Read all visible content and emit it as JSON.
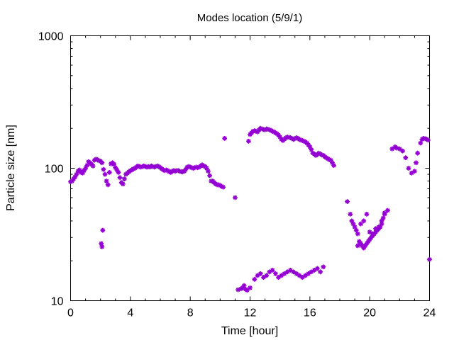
{
  "chart_data": {
    "type": "scatter",
    "title": "Modes location (5/9/1)",
    "xlabel": "Time [hour]",
    "ylabel": "Particle size [nm]",
    "xlim": [
      0,
      24
    ],
    "ylim": [
      10,
      1000
    ],
    "yscale": "log",
    "xticks": [
      0,
      4,
      8,
      12,
      16,
      20,
      24
    ],
    "xtick_labels": [
      "0",
      "4",
      "8",
      "12",
      "16",
      "20",
      "24"
    ],
    "yticks": [
      10,
      100,
      1000
    ],
    "ytick_labels": [
      "10",
      "100",
      "1000"
    ],
    "grid": false,
    "marker_color": "#9400d3",
    "marker": "asterisk",
    "series": [
      {
        "values": [
          [
            0.0,
            79
          ],
          [
            0.1,
            80
          ],
          [
            0.2,
            83
          ],
          [
            0.3,
            86
          ],
          [
            0.4,
            90
          ],
          [
            0.5,
            95
          ],
          [
            0.6,
            97
          ],
          [
            0.7,
            93
          ],
          [
            0.8,
            92
          ],
          [
            0.9,
            96
          ],
          [
            1.0,
            100
          ],
          [
            1.1,
            105
          ],
          [
            1.2,
            112
          ],
          [
            1.3,
            110
          ],
          [
            1.4,
            107
          ],
          [
            1.5,
            104
          ],
          [
            1.6,
            115
          ],
          [
            1.7,
            117
          ],
          [
            1.8,
            116
          ],
          [
            1.9,
            114
          ],
          [
            2.0,
            113
          ],
          [
            2.1,
            110
          ],
          [
            2.2,
            98
          ],
          [
            2.3,
            90
          ],
          [
            2.4,
            80
          ],
          [
            2.5,
            75
          ],
          [
            2.6,
            93
          ],
          [
            2.7,
            108
          ],
          [
            2.8,
            110
          ],
          [
            2.9,
            107
          ],
          [
            3.0,
            101
          ],
          [
            3.1,
            97
          ],
          [
            3.2,
            93
          ],
          [
            3.3,
            85
          ],
          [
            3.4,
            78
          ],
          [
            3.5,
            76
          ],
          [
            3.6,
            83
          ],
          [
            3.7,
            90
          ],
          [
            3.8,
            92
          ],
          [
            3.9,
            94
          ],
          [
            4.0,
            96
          ],
          [
            4.1,
            97
          ],
          [
            4.2,
            99
          ],
          [
            4.3,
            100
          ],
          [
            4.4,
            102
          ],
          [
            4.5,
            104
          ],
          [
            4.6,
            103
          ],
          [
            4.7,
            102
          ],
          [
            4.8,
            103
          ],
          [
            4.9,
            104
          ],
          [
            5.0,
            103
          ],
          [
            5.1,
            102
          ],
          [
            5.2,
            103
          ],
          [
            5.3,
            102
          ],
          [
            5.4,
            104
          ],
          [
            5.5,
            103
          ],
          [
            5.6,
            102
          ],
          [
            5.7,
            103
          ],
          [
            5.8,
            104
          ],
          [
            5.9,
            103
          ],
          [
            6.0,
            101
          ],
          [
            6.1,
            99
          ],
          [
            6.2,
            97
          ],
          [
            6.3,
            96
          ],
          [
            6.4,
            97
          ],
          [
            6.5,
            96
          ],
          [
            6.6,
            94
          ],
          [
            6.7,
            93
          ],
          [
            6.8,
            95
          ],
          [
            6.9,
            96
          ],
          [
            7.0,
            95
          ],
          [
            7.1,
            96
          ],
          [
            7.2,
            96
          ],
          [
            7.3,
            95
          ],
          [
            7.4,
            94
          ],
          [
            7.5,
            94
          ],
          [
            7.6,
            95
          ],
          [
            7.7,
            98
          ],
          [
            7.8,
            102
          ],
          [
            7.9,
            103
          ],
          [
            8.0,
            102
          ],
          [
            8.1,
            101
          ],
          [
            8.2,
            100
          ],
          [
            8.3,
            101
          ],
          [
            8.4,
            102
          ],
          [
            8.5,
            101
          ],
          [
            8.6,
            102
          ],
          [
            8.7,
            104
          ],
          [
            8.8,
            106
          ],
          [
            8.9,
            104
          ],
          [
            9.0,
            103
          ],
          [
            9.1,
            100
          ],
          [
            9.2,
            95
          ],
          [
            9.3,
            88
          ],
          [
            9.4,
            80
          ],
          [
            9.5,
            80
          ],
          [
            9.6,
            78
          ],
          [
            9.7,
            76
          ],
          [
            9.8,
            75
          ],
          [
            9.9,
            75
          ],
          [
            10.0,
            74
          ],
          [
            10.1,
            73
          ],
          [
            10.2,
            72
          ],
          [
            10.3,
            168
          ],
          [
            11.0,
            60
          ],
          [
            11.2,
            12.1
          ],
          [
            11.4,
            12.3
          ],
          [
            11.5,
            12.5
          ],
          [
            11.6,
            13.0
          ],
          [
            11.7,
            12.2
          ],
          [
            11.8,
            12.0
          ],
          [
            11.9,
            160
          ],
          [
            12.0,
            180
          ],
          [
            12.1,
            185
          ],
          [
            12.2,
            190
          ],
          [
            12.3,
            192
          ],
          [
            12.4,
            190
          ],
          [
            12.5,
            188
          ],
          [
            12.6,
            195
          ],
          [
            12.7,
            200
          ],
          [
            12.8,
            198
          ],
          [
            12.9,
            196
          ],
          [
            13.0,
            195
          ],
          [
            13.1,
            198
          ],
          [
            13.2,
            197
          ],
          [
            13.3,
            195
          ],
          [
            13.4,
            193
          ],
          [
            13.5,
            190
          ],
          [
            13.6,
            188
          ],
          [
            13.7,
            185
          ],
          [
            13.8,
            182
          ],
          [
            13.9,
            178
          ],
          [
            14.0,
            172
          ],
          [
            14.1,
            165
          ],
          [
            14.2,
            162
          ],
          [
            14.3,
            166
          ],
          [
            14.4,
            170
          ],
          [
            14.5,
            172
          ],
          [
            14.6,
            171
          ],
          [
            14.7,
            170
          ],
          [
            14.8,
            168
          ],
          [
            14.9,
            165
          ],
          [
            15.0,
            167
          ],
          [
            15.1,
            170
          ],
          [
            15.2,
            168
          ],
          [
            15.3,
            165
          ],
          [
            15.4,
            163
          ],
          [
            15.5,
            162
          ],
          [
            15.6,
            160
          ],
          [
            15.7,
            158
          ],
          [
            15.8,
            155
          ],
          [
            15.9,
            150
          ],
          [
            16.0,
            145
          ],
          [
            16.1,
            138
          ],
          [
            16.2,
            130
          ],
          [
            16.3,
            128
          ],
          [
            16.4,
            125
          ],
          [
            16.5,
            127
          ],
          [
            16.6,
            130
          ],
          [
            16.7,
            128
          ],
          [
            16.8,
            126
          ],
          [
            16.9,
            125
          ],
          [
            17.0,
            122
          ],
          [
            17.1,
            120
          ],
          [
            17.2,
            118
          ],
          [
            17.3,
            116
          ],
          [
            17.4,
            115
          ],
          [
            17.5,
            110
          ],
          [
            17.6,
            105
          ],
          [
            18.5,
            56
          ],
          [
            18.7,
            45
          ],
          [
            18.8,
            40
          ],
          [
            18.9,
            38
          ],
          [
            19.0,
            36
          ],
          [
            19.1,
            34
          ],
          [
            19.2,
            32
          ],
          [
            19.3,
            28
          ],
          [
            19.4,
            27
          ],
          [
            19.5,
            26
          ],
          [
            19.6,
            25
          ],
          [
            19.7,
            26
          ],
          [
            19.8,
            27
          ],
          [
            19.9,
            28
          ],
          [
            20.0,
            29
          ],
          [
            20.1,
            30
          ],
          [
            20.2,
            31
          ],
          [
            20.3,
            32
          ],
          [
            20.4,
            33
          ],
          [
            20.5,
            34
          ],
          [
            20.6,
            35
          ],
          [
            20.7,
            36
          ],
          [
            20.8,
            38
          ],
          [
            20.9,
            42
          ],
          [
            21.0,
            46
          ],
          [
            21.2,
            48
          ],
          [
            21.5,
            140
          ],
          [
            21.7,
            145
          ],
          [
            21.8,
            142
          ],
          [
            22.0,
            140
          ],
          [
            22.2,
            135
          ],
          [
            22.4,
            120
          ],
          [
            22.6,
            100
          ],
          [
            22.8,
            92
          ],
          [
            23.0,
            95
          ],
          [
            23.1,
            110
          ],
          [
            23.2,
            130
          ],
          [
            23.4,
            155
          ],
          [
            23.5,
            165
          ],
          [
            23.6,
            168
          ],
          [
            23.7,
            167
          ],
          [
            23.8,
            166
          ],
          [
            23.9,
            163
          ],
          [
            24.0,
            20.5
          ],
          [
            2.05,
            27
          ],
          [
            2.1,
            25.5
          ],
          [
            2.15,
            34
          ],
          [
            12.0,
            12.5
          ],
          [
            12.3,
            14.5
          ],
          [
            12.5,
            15.5
          ],
          [
            12.7,
            16.0
          ],
          [
            12.9,
            15.0
          ],
          [
            13.1,
            15.5
          ],
          [
            13.3,
            16.5
          ],
          [
            13.5,
            17.0
          ],
          [
            13.7,
            16.0
          ],
          [
            13.9,
            15.0
          ],
          [
            14.1,
            15.5
          ],
          [
            14.3,
            16.0
          ],
          [
            14.5,
            16.5
          ],
          [
            14.7,
            17.0
          ],
          [
            14.9,
            16.5
          ],
          [
            15.1,
            16.0
          ],
          [
            15.3,
            15.5
          ],
          [
            15.5,
            15.0
          ],
          [
            15.7,
            15.5
          ],
          [
            15.9,
            16.0
          ],
          [
            16.1,
            16.5
          ],
          [
            16.3,
            17.0
          ],
          [
            16.5,
            17.5
          ],
          [
            16.7,
            16.5
          ],
          [
            16.9,
            18.0
          ],
          [
            19.2,
            26
          ],
          [
            19.4,
            38
          ],
          [
            19.6,
            40
          ],
          [
            19.8,
            45
          ],
          [
            20.0,
            33
          ],
          [
            20.2,
            32
          ],
          [
            20.4,
            35
          ],
          [
            20.6,
            36
          ],
          [
            20.8,
            40
          ],
          [
            21.0,
            45
          ]
        ]
      }
    ]
  }
}
